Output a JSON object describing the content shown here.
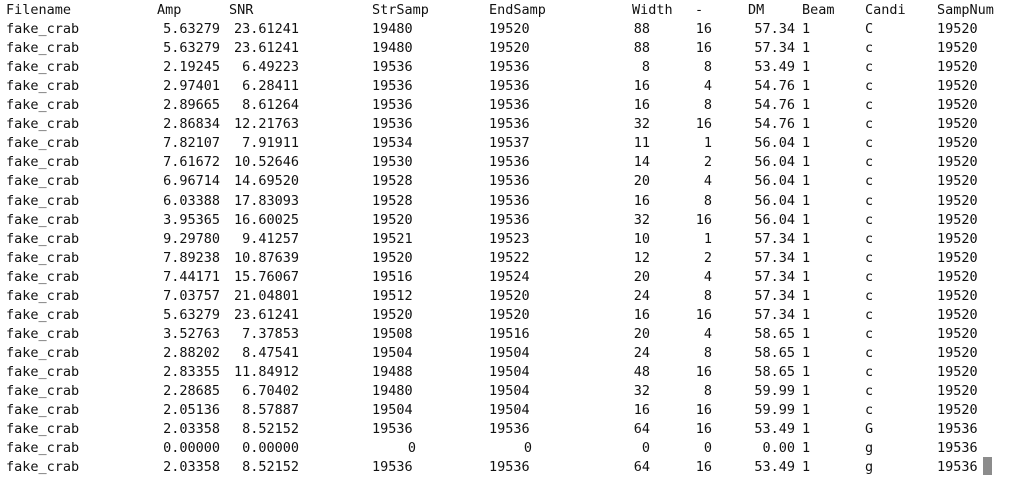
{
  "headers": {
    "filename": "Filename",
    "amp": "Amp",
    "snr": "SNR",
    "strsamp": "StrSamp",
    "endsamp": "EndSamp",
    "width": "Width",
    "dash": "-",
    "dm": "DM",
    "beam": "Beam",
    "candi": "Candi",
    "sampnum": "SampNum"
  },
  "rows": [
    {
      "filename": "fake_crab",
      "amp": "5.63279",
      "snr": "23.61241",
      "strsamp": "19480",
      "endsamp": "19520",
      "width": "88",
      "dash": "16",
      "dm": "57.34",
      "beam": "1",
      "candi": "C",
      "sampnum": "19520"
    },
    {
      "filename": "fake_crab",
      "amp": "5.63279",
      "snr": "23.61241",
      "strsamp": "19480",
      "endsamp": "19520",
      "width": "88",
      "dash": "16",
      "dm": "57.34",
      "beam": "1",
      "candi": "c",
      "sampnum": "19520"
    },
    {
      "filename": "fake_crab",
      "amp": "2.19245",
      "snr": "6.49223",
      "strsamp": "19536",
      "endsamp": "19536",
      "width": "8",
      "dash": "8",
      "dm": "53.49",
      "beam": "1",
      "candi": "c",
      "sampnum": "19520"
    },
    {
      "filename": "fake_crab",
      "amp": "2.97401",
      "snr": "6.28411",
      "strsamp": "19536",
      "endsamp": "19536",
      "width": "16",
      "dash": "4",
      "dm": "54.76",
      "beam": "1",
      "candi": "c",
      "sampnum": "19520"
    },
    {
      "filename": "fake_crab",
      "amp": "2.89665",
      "snr": "8.61264",
      "strsamp": "19536",
      "endsamp": "19536",
      "width": "16",
      "dash": "8",
      "dm": "54.76",
      "beam": "1",
      "candi": "c",
      "sampnum": "19520"
    },
    {
      "filename": "fake_crab",
      "amp": "2.86834",
      "snr": "12.21763",
      "strsamp": "19536",
      "endsamp": "19536",
      "width": "32",
      "dash": "16",
      "dm": "54.76",
      "beam": "1",
      "candi": "c",
      "sampnum": "19520"
    },
    {
      "filename": "fake_crab",
      "amp": "7.82107",
      "snr": "7.91911",
      "strsamp": "19534",
      "endsamp": "19537",
      "width": "11",
      "dash": "1",
      "dm": "56.04",
      "beam": "1",
      "candi": "c",
      "sampnum": "19520"
    },
    {
      "filename": "fake_crab",
      "amp": "7.61672",
      "snr": "10.52646",
      "strsamp": "19530",
      "endsamp": "19536",
      "width": "14",
      "dash": "2",
      "dm": "56.04",
      "beam": "1",
      "candi": "c",
      "sampnum": "19520"
    },
    {
      "filename": "fake_crab",
      "amp": "6.96714",
      "snr": "14.69520",
      "strsamp": "19528",
      "endsamp": "19536",
      "width": "20",
      "dash": "4",
      "dm": "56.04",
      "beam": "1",
      "candi": "c",
      "sampnum": "19520"
    },
    {
      "filename": "fake_crab",
      "amp": "6.03388",
      "snr": "17.83093",
      "strsamp": "19528",
      "endsamp": "19536",
      "width": "16",
      "dash": "8",
      "dm": "56.04",
      "beam": "1",
      "candi": "c",
      "sampnum": "19520"
    },
    {
      "filename": "fake_crab",
      "amp": "3.95365",
      "snr": "16.60025",
      "strsamp": "19520",
      "endsamp": "19536",
      "width": "32",
      "dash": "16",
      "dm": "56.04",
      "beam": "1",
      "candi": "c",
      "sampnum": "19520"
    },
    {
      "filename": "fake_crab",
      "amp": "9.29780",
      "snr": "9.41257",
      "strsamp": "19521",
      "endsamp": "19523",
      "width": "10",
      "dash": "1",
      "dm": "57.34",
      "beam": "1",
      "candi": "c",
      "sampnum": "19520"
    },
    {
      "filename": "fake_crab",
      "amp": "7.89238",
      "snr": "10.87639",
      "strsamp": "19520",
      "endsamp": "19522",
      "width": "12",
      "dash": "2",
      "dm": "57.34",
      "beam": "1",
      "candi": "c",
      "sampnum": "19520"
    },
    {
      "filename": "fake_crab",
      "amp": "7.44171",
      "snr": "15.76067",
      "strsamp": "19516",
      "endsamp": "19524",
      "width": "20",
      "dash": "4",
      "dm": "57.34",
      "beam": "1",
      "candi": "c",
      "sampnum": "19520"
    },
    {
      "filename": "fake_crab",
      "amp": "7.03757",
      "snr": "21.04801",
      "strsamp": "19512",
      "endsamp": "19520",
      "width": "24",
      "dash": "8",
      "dm": "57.34",
      "beam": "1",
      "candi": "c",
      "sampnum": "19520"
    },
    {
      "filename": "fake_crab",
      "amp": "5.63279",
      "snr": "23.61241",
      "strsamp": "19520",
      "endsamp": "19520",
      "width": "16",
      "dash": "16",
      "dm": "57.34",
      "beam": "1",
      "candi": "c",
      "sampnum": "19520"
    },
    {
      "filename": "fake_crab",
      "amp": "3.52763",
      "snr": "7.37853",
      "strsamp": "19508",
      "endsamp": "19516",
      "width": "20",
      "dash": "4",
      "dm": "58.65",
      "beam": "1",
      "candi": "c",
      "sampnum": "19520"
    },
    {
      "filename": "fake_crab",
      "amp": "2.88202",
      "snr": "8.47541",
      "strsamp": "19504",
      "endsamp": "19504",
      "width": "24",
      "dash": "8",
      "dm": "58.65",
      "beam": "1",
      "candi": "c",
      "sampnum": "19520"
    },
    {
      "filename": "fake_crab",
      "amp": "2.83355",
      "snr": "11.84912",
      "strsamp": "19488",
      "endsamp": "19504",
      "width": "48",
      "dash": "16",
      "dm": "58.65",
      "beam": "1",
      "candi": "c",
      "sampnum": "19520"
    },
    {
      "filename": "fake_crab",
      "amp": "2.28685",
      "snr": "6.70402",
      "strsamp": "19480",
      "endsamp": "19504",
      "width": "32",
      "dash": "8",
      "dm": "59.99",
      "beam": "1",
      "candi": "c",
      "sampnum": "19520"
    },
    {
      "filename": "fake_crab",
      "amp": "2.05136",
      "snr": "8.57887",
      "strsamp": "19504",
      "endsamp": "19504",
      "width": "16",
      "dash": "16",
      "dm": "59.99",
      "beam": "1",
      "candi": "c",
      "sampnum": "19520"
    },
    {
      "filename": "fake_crab",
      "amp": "2.03358",
      "snr": "8.52152",
      "strsamp": "19536",
      "endsamp": "19536",
      "width": "64",
      "dash": "16",
      "dm": "53.49",
      "beam": "1",
      "candi": "G",
      "sampnum": "19536"
    },
    {
      "filename": "fake_crab",
      "amp": "0.00000",
      "snr": "0.00000",
      "strsamp": "0",
      "endsamp": "0",
      "width": "0",
      "dash": "0",
      "dm": "0.00",
      "beam": "1",
      "candi": "g",
      "sampnum": "19536"
    },
    {
      "filename": "fake_crab",
      "amp": "2.03358",
      "snr": "8.52152",
      "strsamp": "19536",
      "endsamp": "19536",
      "width": "64",
      "dash": "16",
      "dm": "53.49",
      "beam": "1",
      "candi": "g",
      "sampnum": "19536"
    }
  ],
  "colors": {
    "background": "#ffffff",
    "text": "#111111",
    "cursor": "#8c8c8c"
  }
}
